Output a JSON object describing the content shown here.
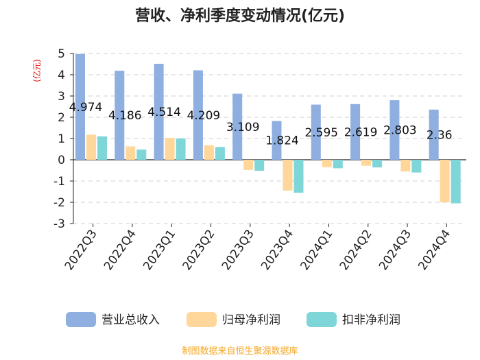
{
  "chart_data": {
    "type": "bar",
    "title": "营收、净利季度变动情况(亿元)",
    "unit_label": "(亿元)",
    "categories": [
      "2022Q3",
      "2022Q4",
      "2023Q1",
      "2023Q2",
      "2023Q3",
      "2023Q4",
      "2024Q1",
      "2024Q2",
      "2024Q3",
      "2024Q4"
    ],
    "series": [
      {
        "name": "营业总收入",
        "color": "#8eafe0",
        "values": [
          4.974,
          4.186,
          4.514,
          4.209,
          3.109,
          1.824,
          2.595,
          2.619,
          2.803,
          2.36
        ]
      },
      {
        "name": "归母净利润",
        "color": "#ffd79a",
        "values": [
          1.18,
          0.63,
          1.03,
          0.68,
          -0.48,
          -1.45,
          -0.35,
          -0.28,
          -0.55,
          -2.0
        ]
      },
      {
        "name": "扣非净利润",
        "color": "#7fd6d8",
        "values": [
          1.1,
          0.48,
          1.0,
          0.6,
          -0.52,
          -1.55,
          -0.4,
          -0.36,
          -0.6,
          -2.05
        ]
      }
    ],
    "data_labels": [
      "4.974",
      "4.186",
      "4.514",
      "4.209",
      "3.109",
      "1.824",
      "2.595",
      "2.619",
      "2.803",
      "2.36"
    ],
    "yticks": [
      "5",
      "4",
      "3",
      "2",
      "1",
      "0",
      "-1",
      "-2",
      "-3"
    ],
    "ylim": [
      -3,
      5
    ],
    "legend_position": "bottom",
    "grid": true
  },
  "footer": "制图数据来自恒生聚源数据库"
}
